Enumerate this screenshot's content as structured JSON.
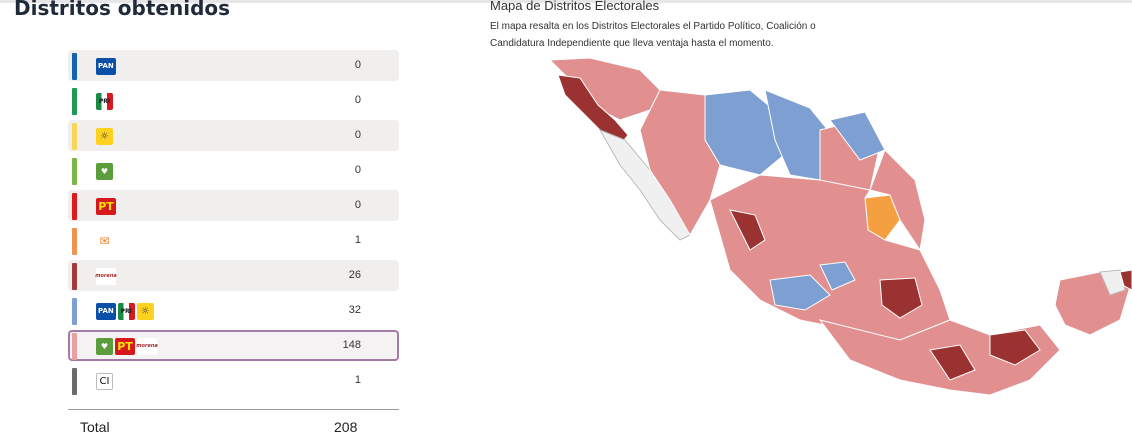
{
  "header": {
    "title": "Distritos obtenidos"
  },
  "rows": [
    {
      "color": "#1762b0",
      "logos": [
        "PAN"
      ],
      "logo_icons": [
        "pan-logo-icon"
      ],
      "count": "0",
      "shaded": true
    },
    {
      "color": "#1f9a52",
      "logos": [
        "PRI"
      ],
      "logo_icons": [
        "pri-logo-icon"
      ],
      "count": "0",
      "shaded": false
    },
    {
      "color": "#f7d65a",
      "logos": [
        "☼"
      ],
      "logo_icons": [
        "prd-logo-icon"
      ],
      "count": "0",
      "shaded": true
    },
    {
      "color": "#7ab648",
      "logos": [
        "♥"
      ],
      "logo_icons": [
        "pvem-logo-icon"
      ],
      "count": "0",
      "shaded": false
    },
    {
      "color": "#e0191c",
      "logos": [
        "PT"
      ],
      "logo_icons": [
        "pt-logo-icon"
      ],
      "count": "0",
      "shaded": true
    },
    {
      "color": "#f09350",
      "logos": [
        "✉"
      ],
      "logo_icons": [
        "movimiento-ciudadano-logo-icon"
      ],
      "count": "1",
      "shaded": false
    },
    {
      "color": "#a13a3a",
      "logos": [
        "morena"
      ],
      "logo_icons": [
        "morena-logo-icon"
      ],
      "count": "26",
      "shaded": true
    },
    {
      "color": "#7d9fd1",
      "logos": [
        "PAN",
        "PRI",
        "☼"
      ],
      "logo_icons": [
        "pan-logo-icon",
        "pri-logo-icon",
        "prd-logo-icon"
      ],
      "count": "32",
      "shaded": false
    },
    {
      "color": "#e6a1a0",
      "logos": [
        "♥",
        "PT",
        "morena"
      ],
      "logo_icons": [
        "pvem-logo-icon",
        "pt-logo-icon",
        "morena-logo-icon"
      ],
      "count": "148",
      "shaded": true,
      "selected": true
    },
    {
      "color": "#6b6b6b",
      "logos": [
        "CI"
      ],
      "logo_icons": [
        "independiente-logo-icon"
      ],
      "count": "1",
      "shaded": false
    }
  ],
  "total": {
    "label": "Total",
    "value": "208"
  },
  "map": {
    "title": "Mapa de Distritos Electorales",
    "description": "El mapa resalta en los Distritos Electorales el Partido Político, Coalición o Candidatura Independiente que lleva ventaja hasta el momento.",
    "legend_colors": {
      "coalicion_sigamos_haciendo_historia": "#e28f8f",
      "coalicion_fuerza_y_corazon": "#7d9fd1",
      "morena": "#9b3232",
      "movimiento_ciudadano": "#f5a040",
      "sin_datos": "#f0f0f0"
    }
  }
}
